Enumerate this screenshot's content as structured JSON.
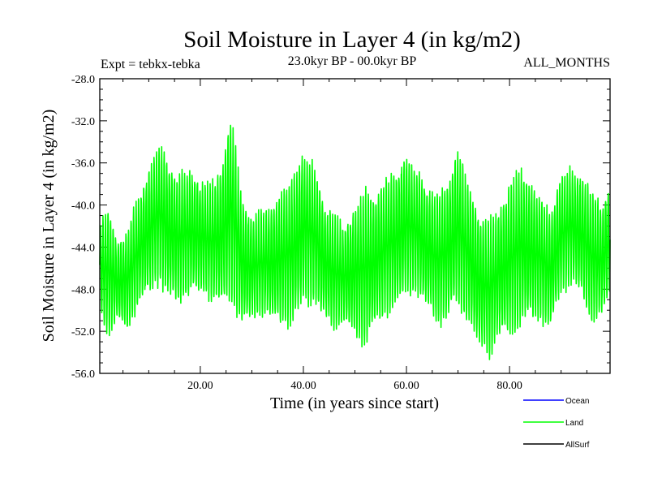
{
  "chart_data": {
    "type": "line",
    "title": "Soil Moisture in Layer 4 (in kg/m2)",
    "subtitle_left": "Expt = tebkx-tebka",
    "subtitle_center": "23.0kyr BP - 00.0kyr BP",
    "subtitle_right": "ALL_MONTHS",
    "xlabel": "Time (in years since start)",
    "ylabel": "Soil Moisture in Layer 4 (in kg/m2)",
    "xlim": [
      0.5,
      99.5
    ],
    "ylim": [
      -56.0,
      -28.0
    ],
    "xticks": [
      20,
      40,
      60,
      80
    ],
    "xtick_labels": [
      "20.00",
      "40.00",
      "60.00",
      "80.00"
    ],
    "yticks": [
      -28,
      -32,
      -36,
      -40,
      -44,
      -48,
      -52,
      -56
    ],
    "ytick_labels": [
      "-28.0",
      "-32.0",
      "-36.0",
      "-40.0",
      "-44.0",
      "-48.0",
      "-52.0",
      "-56.0"
    ],
    "legend_position": "bottom-right",
    "series": [
      {
        "name": "Ocean",
        "color": "#0000ff",
        "values": []
      },
      {
        "name": "Land",
        "color": "#00ff00",
        "values": []
      },
      {
        "name": "AllSurf",
        "color": "#000000",
        "values": []
      }
    ],
    "land_envelope": {
      "years": [
        0.5,
        2,
        4,
        6,
        8,
        10,
        12,
        14,
        16,
        18,
        20,
        22,
        24,
        26,
        28,
        30,
        32,
        34,
        36,
        38,
        40,
        42,
        44,
        46,
        48,
        50,
        52,
        54,
        56,
        58,
        60,
        62,
        64,
        66,
        68,
        70,
        72,
        74,
        76,
        78,
        80,
        82,
        84,
        86,
        88,
        90,
        92,
        94,
        96,
        98,
        99.5
      ],
      "peak": [
        -41.8,
        -40.0,
        -43.5,
        -42.0,
        -39.0,
        -36.5,
        -34.0,
        -36.0,
        -37.0,
        -36.5,
        -37.5,
        -38.0,
        -36.5,
        -31.0,
        -39.0,
        -41.0,
        -40.5,
        -40.0,
        -38.5,
        -37.0,
        -34.5,
        -36.0,
        -39.5,
        -41.0,
        -42.0,
        -40.0,
        -38.5,
        -39.0,
        -37.5,
        -36.5,
        -35.0,
        -36.5,
        -38.0,
        -39.0,
        -37.5,
        -34.5,
        -38.0,
        -40.5,
        -41.5,
        -40.0,
        -38.0,
        -36.5,
        -37.5,
        -39.0,
        -40.5,
        -37.0,
        -36.5,
        -37.0,
        -38.5,
        -40.0,
        -37.5
      ],
      "trough": [
        -50.2,
        -52.5,
        -51.0,
        -52.0,
        -49.5,
        -48.5,
        -47.5,
        -49.0,
        -49.5,
        -48.5,
        -48.5,
        -49.0,
        -49.5,
        -49.0,
        -51.5,
        -51.0,
        -50.5,
        -51.0,
        -51.5,
        -51.5,
        -49.5,
        -49.5,
        -51.0,
        -52.0,
        -51.5,
        -52.5,
        -53.5,
        -51.5,
        -50.5,
        -50.0,
        -48.5,
        -48.5,
        -50.0,
        -51.5,
        -51.0,
        -49.5,
        -51.5,
        -53.5,
        -54.5,
        -52.5,
        -52.5,
        -51.5,
        -51.0,
        -51.0,
        -52.0,
        -48.5,
        -47.5,
        -48.5,
        -51.5,
        -50.5,
        -48.5
      ]
    }
  }
}
